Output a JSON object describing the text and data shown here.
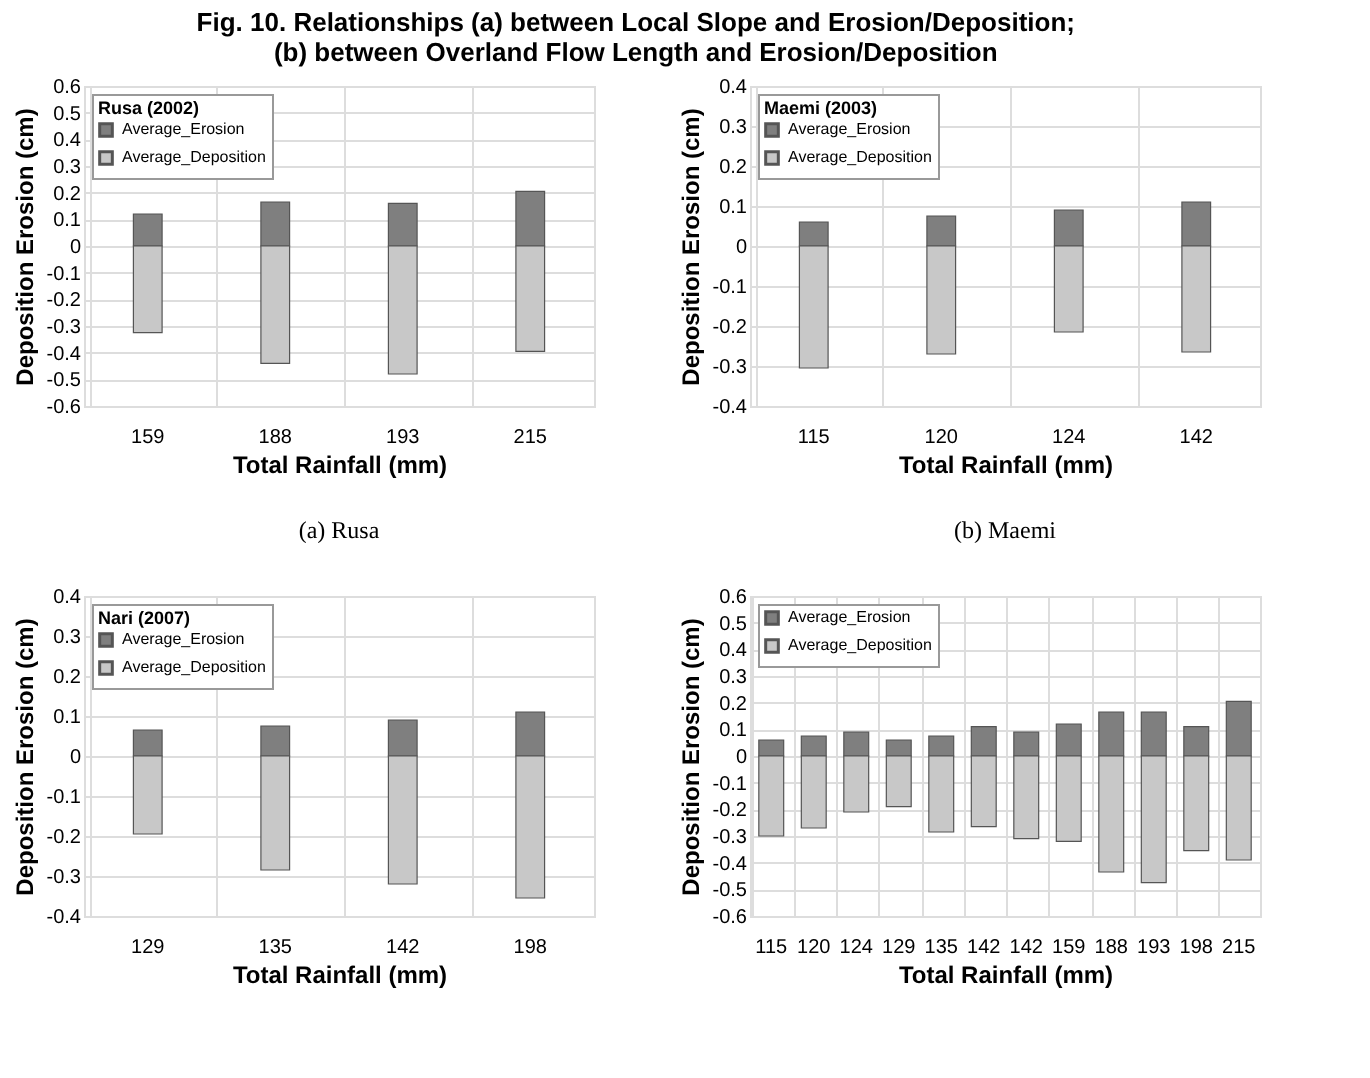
{
  "chart_data": [
    {
      "type": "bar",
      "title": "Fig. 10. Relationships (a) between Local Slope and Erosion/Deposition;\n(b) between Overland Flow Length and Erosion/Deposition",
      "legend_title": "Rusa (2002)",
      "xlabel": "Total Rainfall (mm)",
      "ylabel": "Deposition      Erosion (cm)",
      "annotations": [
        "(a) Rusa"
      ],
      "categories": [
        "159",
        "188",
        "193",
        "215"
      ],
      "ylim": [
        -0.6,
        0.6
      ],
      "yticks": [
        -0.6,
        -0.5,
        -0.4,
        -0.3,
        -0.2,
        -0.1,
        0,
        0.1,
        0.2,
        0.3,
        0.4,
        0.5,
        0.6
      ],
      "grid": true,
      "legend": "top left",
      "stacked": true,
      "series": [
        {
          "name": "Average_Erosion",
          "color": "#7f7f7f",
          "values": [
            0.12,
            0.165,
            0.16,
            0.205
          ]
        },
        {
          "name": "Average_Deposition",
          "color": "#c8c8c8",
          "values": [
            -0.325,
            -0.44,
            -0.48,
            -0.395
          ]
        }
      ]
    },
    {
      "type": "bar",
      "legend_title": "Maemi (2003)",
      "xlabel": "Total Rainfall (mm)",
      "ylabel": "Deposition      Erosion (cm)",
      "annotations": [
        "(b) Maemi"
      ],
      "categories": [
        "115",
        "120",
        "124",
        "142"
      ],
      "ylim": [
        -0.4,
        0.4
      ],
      "yticks": [
        -0.4,
        -0.3,
        -0.2,
        -0.1,
        0,
        0.1,
        0.2,
        0.3,
        0.4
      ],
      "grid": true,
      "legend": "top left",
      "stacked": true,
      "series": [
        {
          "name": "Average_Erosion",
          "color": "#7f7f7f",
          "values": [
            0.06,
            0.075,
            0.09,
            0.11
          ]
        },
        {
          "name": "Average_Deposition",
          "color": "#c8c8c8",
          "values": [
            -0.305,
            -0.27,
            -0.215,
            -0.265
          ]
        }
      ]
    },
    {
      "type": "bar",
      "legend_title": "Nari (2007)",
      "xlabel": "Total Rainfall (mm)",
      "ylabel": "Deposition      Erosion (cm)",
      "categories": [
        "129",
        "135",
        "142",
        "198"
      ],
      "ylim": [
        -0.4,
        0.4
      ],
      "yticks": [
        -0.4,
        -0.3,
        -0.2,
        -0.1,
        0,
        0.1,
        0.2,
        0.3,
        0.4
      ],
      "grid": true,
      "legend": "top left",
      "stacked": true,
      "series": [
        {
          "name": "Average_Erosion",
          "color": "#7f7f7f",
          "values": [
            0.065,
            0.075,
            0.09,
            0.11
          ]
        },
        {
          "name": "Average_Deposition",
          "color": "#c8c8c8",
          "values": [
            -0.195,
            -0.285,
            -0.32,
            -0.355
          ]
        }
      ]
    },
    {
      "type": "bar",
      "xlabel": "Total Rainfall (mm)",
      "ylabel": "Deposition      Erosion (cm)",
      "categories": [
        "115",
        "120",
        "124",
        "129",
        "135",
        "142",
        "142",
        "159",
        "188",
        "193",
        "198",
        "215"
      ],
      "ylim": [
        -0.6,
        0.6
      ],
      "yticks": [
        -0.6,
        -0.5,
        -0.4,
        -0.3,
        -0.2,
        -0.1,
        0,
        0.1,
        0.2,
        0.3,
        0.4,
        0.5,
        0.6
      ],
      "grid": true,
      "legend": "top left",
      "stacked": true,
      "series": [
        {
          "name": "Average_Erosion",
          "color": "#7f7f7f",
          "values": [
            0.06,
            0.075,
            0.09,
            0.06,
            0.075,
            0.11,
            0.09,
            0.12,
            0.165,
            0.165,
            0.11,
            0.205
          ]
        },
        {
          "name": "Average_Deposition",
          "color": "#c8c8c8",
          "values": [
            -0.3,
            -0.27,
            -0.21,
            -0.19,
            -0.285,
            -0.265,
            -0.31,
            -0.32,
            -0.435,
            -0.475,
            -0.355,
            -0.39
          ]
        }
      ]
    }
  ]
}
